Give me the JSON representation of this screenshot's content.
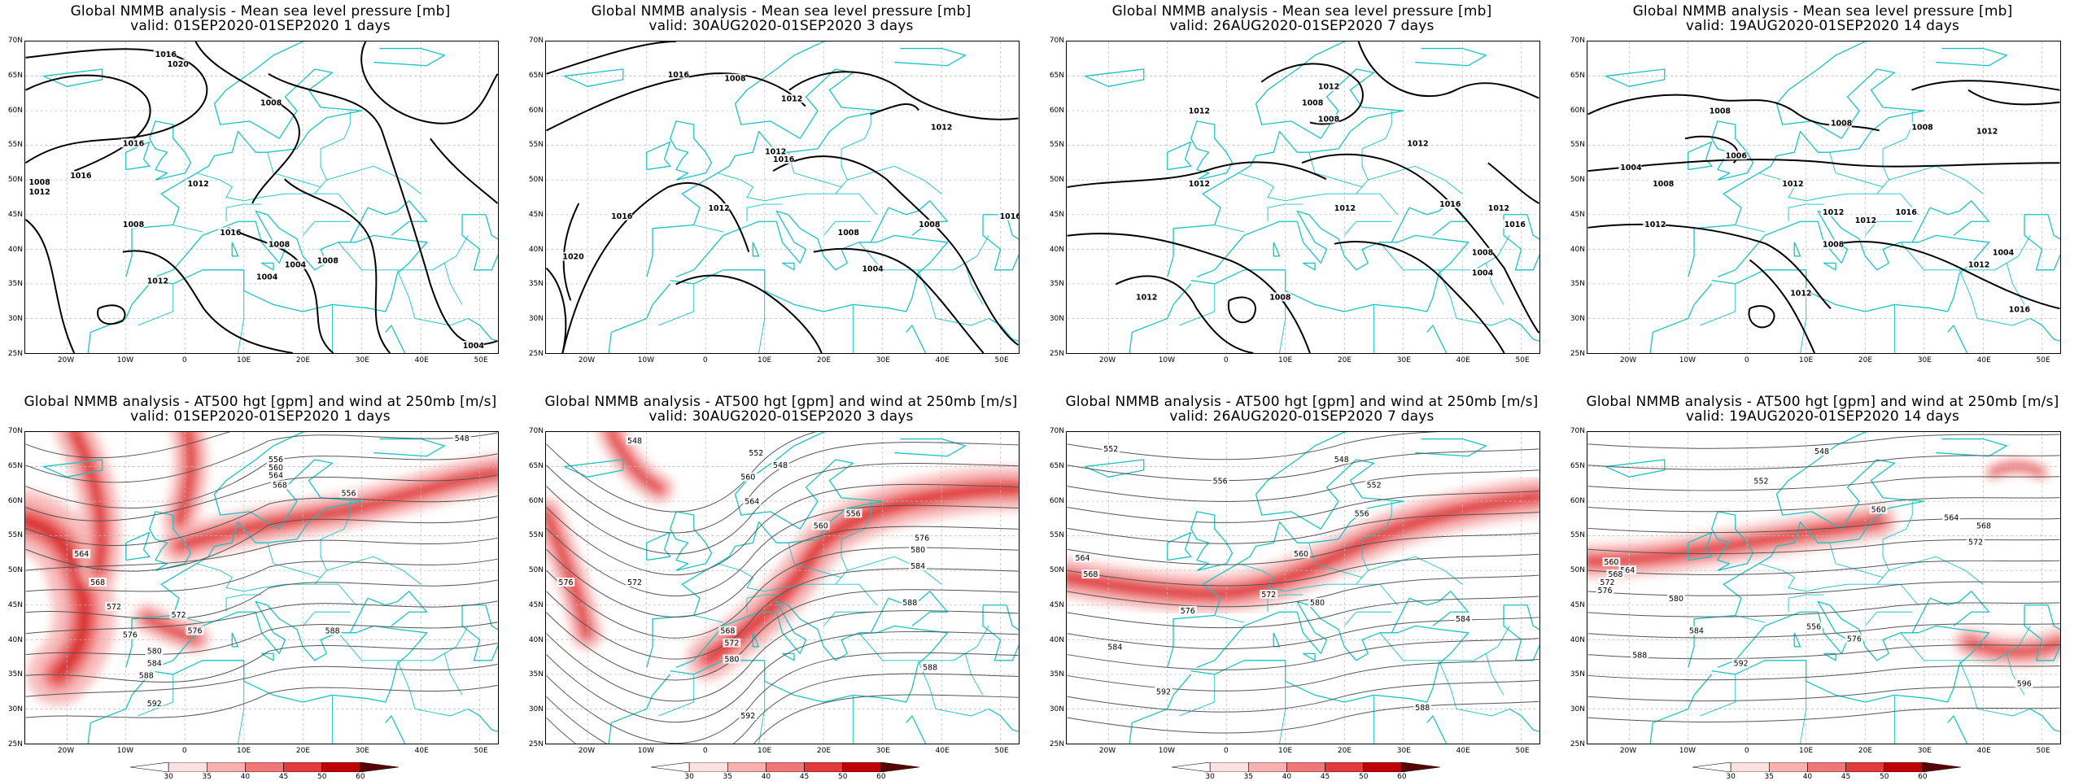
{
  "colors": {
    "coast": "#19c3c3",
    "jet": "#e8212b",
    "contour": "#000000",
    "grid": "#bdbdbd"
  },
  "lat_labels": [
    "70N",
    "65N",
    "60N",
    "55N",
    "50N",
    "45N",
    "40N",
    "35N",
    "30N",
    "25N"
  ],
  "lon_labels": [
    "20W",
    "10W",
    "0",
    "10E",
    "20E",
    "30E",
    "40E",
    "50E"
  ],
  "colorbar": {
    "ticks": [
      "30",
      "35",
      "40",
      "45",
      "50",
      "60"
    ],
    "colors": [
      "#ffffff",
      "#fde0e0",
      "#f8b0b0",
      "#f07878",
      "#e23b3b",
      "#c00000",
      "#5a0000"
    ]
  },
  "panels": [
    {
      "title1": "Global NMMB analysis - Mean sea level pressure [mb]",
      "title2": "valid: 01SEP2020-01SEP2020   1 days",
      "labels": [
        "1016",
        "1020",
        "1008",
        "1012",
        "1016",
        "1016",
        "1008",
        "1012",
        "1016",
        "1008",
        "1004",
        "1004",
        "1012",
        "1008",
        "1008",
        "1004"
      ]
    },
    {
      "title1": "Global NMMB analysis - Mean sea level pressure [mb]",
      "title2": "valid: 30AUG2020-01SEP2020   3 days",
      "labels": [
        "1016",
        "1012",
        "1016",
        "1012",
        "1008",
        "1016",
        "1016",
        "1012",
        "1008",
        "1012",
        "1008",
        "1004",
        "1020"
      ]
    },
    {
      "title1": "Global NMMB analysis - Mean sea level pressure [mb]",
      "title2": "valid: 26AUG2020-01SEP2020   7 days",
      "labels": [
        "1012",
        "1012",
        "1008",
        "1008",
        "1012",
        "1012",
        "1016",
        "1012",
        "1016",
        "1012",
        "1008",
        "1004",
        "1008",
        "1012"
      ]
    },
    {
      "title1": "Global NMMB analysis - Mean sea level pressure [mb]",
      "title2": "valid: 19AUG2020-01SEP2020   14 days",
      "labels": [
        "1008",
        "1008",
        "1008",
        "1012",
        "1004",
        "1008",
        "1006",
        "1012",
        "1012",
        "1016",
        "1012",
        "1012",
        "1008",
        "1004",
        "1012",
        "1012",
        "1016"
      ]
    },
    {
      "title1": "Global NMMB analysis - AT500 hgt [gpm] and wind at 250mb [m/s]",
      "title2": "valid: 01SEP2020-01SEP2020   1 days",
      "labels": [
        "548",
        "556",
        "560",
        "564",
        "568",
        "556",
        "564",
        "568",
        "572",
        "576",
        "580",
        "584",
        "588",
        "592",
        "576",
        "572",
        "588"
      ]
    },
    {
      "title1": "Global NMMB analysis - AT500 hgt [gpm] and wind at 250mb [m/s]",
      "title2": "valid: 30AUG2020-01SEP2020   3 days",
      "labels": [
        "548",
        "552",
        "548",
        "560",
        "564",
        "572",
        "576",
        "556",
        "560",
        "576",
        "580",
        "584",
        "588",
        "572",
        "568",
        "580",
        "588",
        "592"
      ]
    },
    {
      "title1": "Global NMMB analysis - AT500 hgt [gpm] and wind at 250mb [m/s]",
      "title2": "valid: 26AUG2020-01SEP2020   7 days",
      "labels": [
        "552",
        "548",
        "556",
        "552",
        "556",
        "564",
        "568",
        "560",
        "572",
        "576",
        "580",
        "584",
        "584",
        "592",
        "588"
      ]
    },
    {
      "title1": "Global NMMB analysis - AT500 hgt [gpm] and wind at 250mb [m/s]",
      "title2": "valid: 19AUG2020-01SEP2020   14 days",
      "labels": [
        "548",
        "552",
        "560",
        "564",
        "568",
        "572",
        "576",
        "580",
        "584",
        "588",
        "592",
        "596",
        "556",
        "560",
        "564",
        "568",
        "572",
        "576"
      ]
    }
  ]
}
